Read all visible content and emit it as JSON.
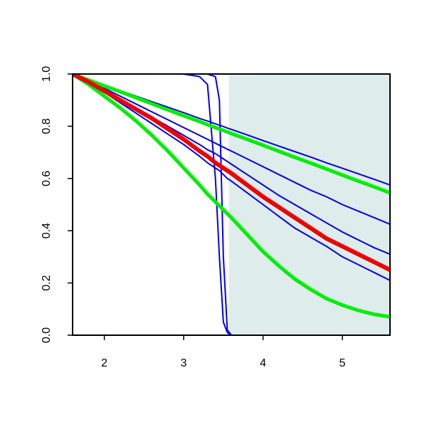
{
  "chart_data": {
    "type": "line",
    "x": [
      1.6,
      1.8,
      2.0,
      2.2,
      2.4,
      2.6,
      2.8,
      3.0,
      3.2,
      3.3,
      3.4,
      3.45,
      3.5,
      3.55,
      3.6,
      3.8,
      4.0,
      4.2,
      4.4,
      4.6,
      4.8,
      5.0,
      5.2,
      5.4,
      5.6
    ],
    "xlim": [
      1.6,
      5.6
    ],
    "xticks": [
      2,
      3,
      4,
      5
    ],
    "ylim": [
      0,
      1
    ],
    "yticks": [
      {
        "value": 0,
        "label": "0.0"
      },
      {
        "value": 0.2,
        "label": "0.2"
      },
      {
        "value": 0.4,
        "label": "0.4"
      },
      {
        "value": 0.6,
        "label": "0.6"
      },
      {
        "value": 0.8,
        "label": "0.8"
      },
      {
        "value": 1,
        "label": "1.0"
      }
    ],
    "shaded_region": {
      "x": [
        3.57,
        5.6
      ],
      "color": "#deecec"
    },
    "series": [
      {
        "color": "#0000ee",
        "line_width": 2,
        "values": [
          1,
          1,
          1,
          1,
          1,
          1,
          1,
          1,
          0.99,
          0.96,
          0.6,
          0.3,
          0.05,
          0.01,
          0,
          0,
          0,
          0,
          0,
          0,
          0,
          0,
          0,
          0,
          0
        ]
      },
      {
        "color": "#0000ee",
        "line_width": 2,
        "values": [
          1,
          1,
          1,
          1,
          1,
          1,
          1,
          1,
          1,
          1,
          0.99,
          0.9,
          0.3,
          0.02,
          0,
          0,
          0,
          0,
          0,
          0,
          0,
          0,
          0,
          0,
          0
        ]
      },
      {
        "color": "#0000ee",
        "line_width": 2,
        "values": [
          1,
          0.965,
          0.93,
          0.89,
          0.85,
          0.81,
          0.77,
          0.73,
          0.685,
          0.66,
          0.64,
          0.63,
          0.615,
          0.6,
          0.59,
          0.545,
          0.5,
          0.455,
          0.41,
          0.375,
          0.34,
          0.3,
          0.27,
          0.24,
          0.21
        ]
      },
      {
        "color": "#0000ee",
        "line_width": 2,
        "values": [
          1,
          0.97,
          0.94,
          0.9,
          0.87,
          0.835,
          0.8,
          0.765,
          0.73,
          0.71,
          0.695,
          0.685,
          0.675,
          0.665,
          0.655,
          0.615,
          0.575,
          0.535,
          0.5,
          0.465,
          0.43,
          0.395,
          0.365,
          0.335,
          0.31
        ]
      },
      {
        "color": "#0000ee",
        "line_width": 2,
        "values": [
          1,
          0.975,
          0.945,
          0.915,
          0.885,
          0.855,
          0.825,
          0.795,
          0.765,
          0.75,
          0.735,
          0.727,
          0.72,
          0.712,
          0.705,
          0.675,
          0.645,
          0.615,
          0.585,
          0.555,
          0.53,
          0.5,
          0.475,
          0.45,
          0.425
        ]
      },
      {
        "color": "#0000ee",
        "line_width": 2,
        "values": [
          1,
          0.979,
          0.958,
          0.936,
          0.915,
          0.894,
          0.873,
          0.852,
          0.83,
          0.82,
          0.809,
          0.804,
          0.799,
          0.793,
          0.788,
          0.767,
          0.745,
          0.724,
          0.703,
          0.682,
          0.66,
          0.639,
          0.618,
          0.597,
          0.575
        ]
      },
      {
        "color": "#00ee00",
        "line_width": 5,
        "values": [
          1,
          0.977,
          0.954,
          0.932,
          0.909,
          0.886,
          0.863,
          0.84,
          0.818,
          0.806,
          0.795,
          0.789,
          0.784,
          0.778,
          0.772,
          0.75,
          0.727,
          0.704,
          0.681,
          0.659,
          0.636,
          0.613,
          0.59,
          0.568,
          0.545
        ]
      },
      {
        "color": "#00ee00",
        "line_width": 5,
        "values": [
          1,
          0.96,
          0.915,
          0.87,
          0.82,
          0.765,
          0.705,
          0.64,
          0.575,
          0.54,
          0.51,
          0.495,
          0.48,
          0.465,
          0.45,
          0.385,
          0.32,
          0.265,
          0.215,
          0.175,
          0.14,
          0.115,
          0.095,
          0.08,
          0.07
        ]
      },
      {
        "color": "#ee0000",
        "line_width": 6,
        "values": [
          1,
          0.97,
          0.935,
          0.9,
          0.865,
          0.83,
          0.79,
          0.75,
          0.705,
          0.685,
          0.66,
          0.65,
          0.64,
          0.63,
          0.62,
          0.575,
          0.53,
          0.49,
          0.45,
          0.41,
          0.37,
          0.34,
          0.31,
          0.28,
          0.25
        ]
      }
    ]
  }
}
